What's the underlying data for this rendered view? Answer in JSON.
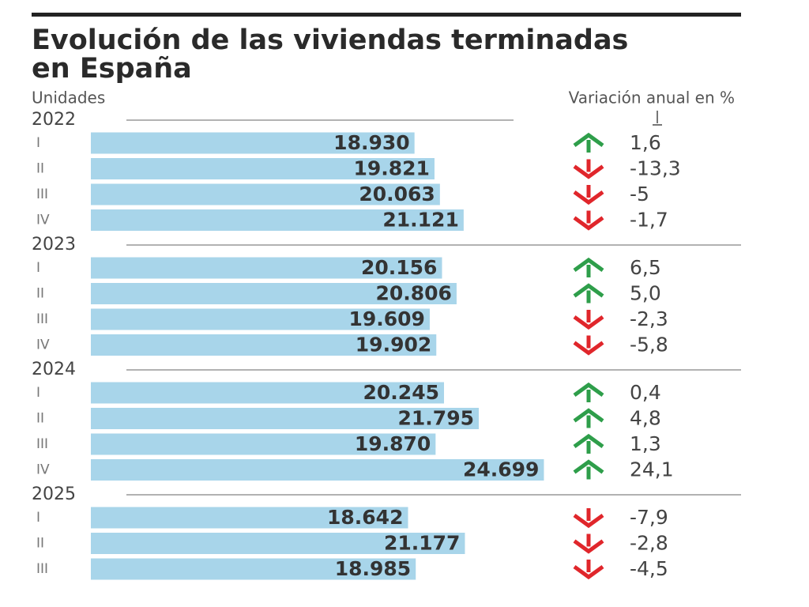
{
  "chart_data": {
    "type": "bar",
    "title": "Evolución de las viviendas terminadas en España",
    "unit_label": "Unidades",
    "variation_title": "Variación anual en %",
    "color": "#a8d5ea",
    "up_color": "#2e9e4a",
    "down_color": "#e0262b",
    "xlim": [
      4500,
      25000
    ],
    "groups": [
      {
        "name": "2022",
        "categories": [
          "I",
          "II",
          "III",
          "IV"
        ],
        "values": [
          18930,
          19821,
          20063,
          21121
        ],
        "value_labels": [
          "18.930",
          "19.821",
          "20.063",
          "21.121"
        ],
        "variation": [
          1.6,
          -13.3,
          -5,
          -1.7
        ],
        "variation_labels": [
          "1,6",
          "-13,3",
          "-5",
          "-1,7"
        ]
      },
      {
        "name": "2023",
        "categories": [
          "I",
          "II",
          "III",
          "IV"
        ],
        "values": [
          20156,
          20806,
          19609,
          19902
        ],
        "value_labels": [
          "20.156",
          "20.806",
          "19.609",
          "19.902"
        ],
        "variation": [
          6.5,
          5.0,
          -2.3,
          -5.8
        ],
        "variation_labels": [
          "6,5",
          "5,0",
          "-2,3",
          "-5,8"
        ]
      },
      {
        "name": "2024",
        "categories": [
          "I",
          "II",
          "III",
          "IV"
        ],
        "values": [
          20245,
          21795,
          19870,
          24699
        ],
        "value_labels": [
          "20.245",
          "21.795",
          "19.870",
          "24.699"
        ],
        "variation": [
          0.4,
          4.8,
          1.3,
          24.1
        ],
        "variation_labels": [
          "0,4",
          "4,8",
          "1,3",
          "24,1"
        ]
      },
      {
        "name": "2025",
        "categories": [
          "I",
          "II",
          "III"
        ],
        "values": [
          18642,
          21177,
          18985
        ],
        "value_labels": [
          "18.642",
          "21.177",
          "18.985"
        ],
        "variation": [
          -7.9,
          -2.8,
          -4.5
        ],
        "variation_labels": [
          "-7,9",
          "-2,8",
          "-4,5"
        ]
      }
    ]
  }
}
